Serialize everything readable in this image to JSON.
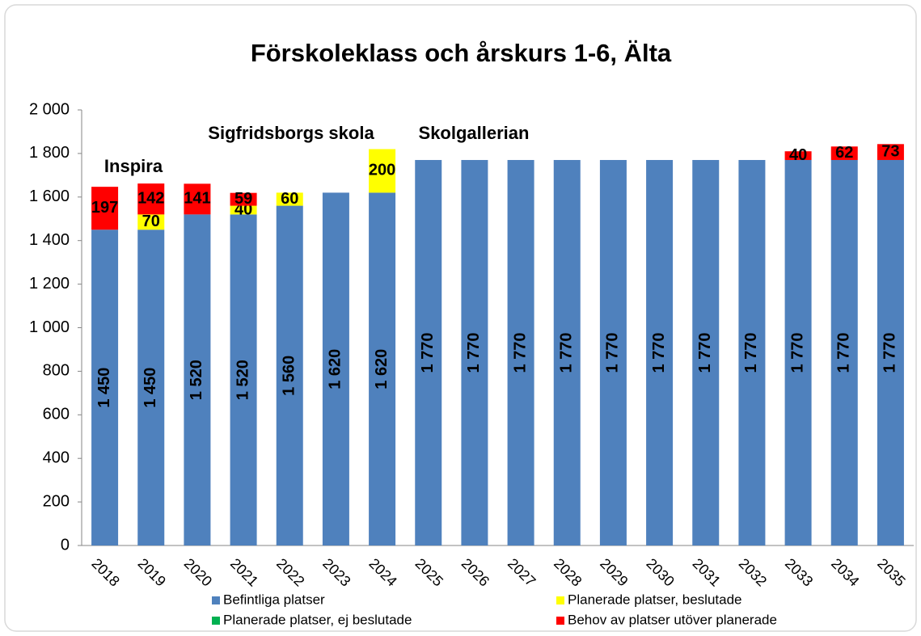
{
  "chart_data": {
    "type": "stacked_bar",
    "title": "Förskoleklass och årskurs 1-6,  Älta",
    "categories": [
      "2018",
      "2019",
      "2020",
      "2021",
      "2022",
      "2023",
      "2024",
      "2025",
      "2026",
      "2027",
      "2028",
      "2029",
      "2030",
      "2031",
      "2032",
      "2033",
      "2034",
      "2035"
    ],
    "series": [
      {
        "name": "Befintliga platser",
        "color": "#4f81bd",
        "values": [
          1450,
          1450,
          1520,
          1520,
          1560,
          1620,
          1620,
          1770,
          1770,
          1770,
          1770,
          1770,
          1770,
          1770,
          1770,
          1770,
          1770,
          1770
        ],
        "value_labels": [
          "1 450",
          "1 450",
          "1 520",
          "1 520",
          "1 560",
          "1 620",
          "1 620",
          "1 770",
          "1 770",
          "1 770",
          "1 770",
          "1 770",
          "1 770",
          "1 770",
          "1 770",
          "1 770",
          "1 770",
          "1 770"
        ]
      },
      {
        "name": "Planerade platser, beslutade",
        "color": "#ffff00",
        "values": [
          null,
          70,
          null,
          40,
          60,
          null,
          200,
          null,
          null,
          null,
          null,
          null,
          null,
          null,
          null,
          null,
          null,
          null
        ]
      },
      {
        "name": "Planerade platser, ej beslutade",
        "color": "#00b050",
        "values": [
          null,
          null,
          null,
          null,
          null,
          null,
          null,
          null,
          null,
          null,
          null,
          null,
          null,
          null,
          null,
          null,
          null,
          null
        ]
      },
      {
        "name": "Behov av platser utöver planerade",
        "color": "#ff0000",
        "values": [
          197,
          142,
          141,
          59,
          null,
          null,
          null,
          null,
          null,
          null,
          null,
          null,
          null,
          null,
          null,
          40,
          62,
          73
        ]
      }
    ],
    "annotations": [
      "Inspira",
      "Sigfridsborgs skola",
      "Skolgallerian"
    ],
    "ylim": [
      0,
      2000
    ],
    "yticks": [
      0,
      200,
      400,
      600,
      800,
      {
        "value": 1000,
        "label": "1 000"
      },
      {
        "value": 1200,
        "label": "1 200"
      },
      {
        "value": 1400,
        "label": "1 400"
      },
      {
        "value": 1600,
        "label": "1 600"
      },
      {
        "value": 1800,
        "label": "1 800"
      },
      {
        "value": 2000,
        "label": "2 000"
      }
    ],
    "grid": false
  }
}
